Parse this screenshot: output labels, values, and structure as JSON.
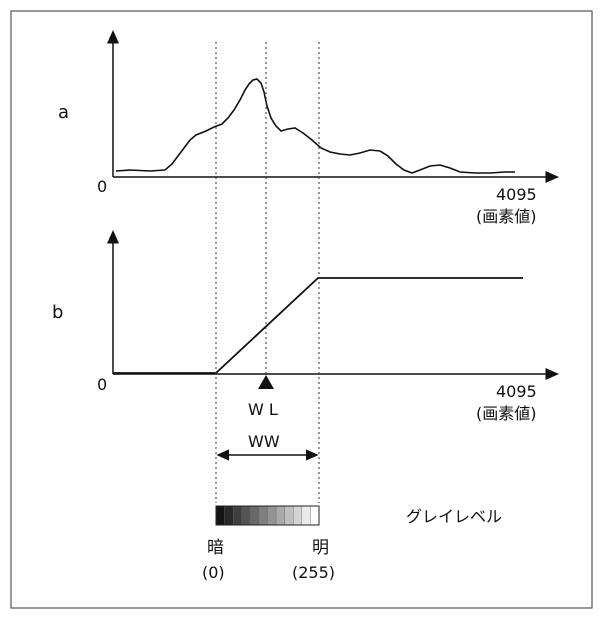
{
  "panel_a": {
    "label": "a",
    "origin_label": "0",
    "max_label": "4095",
    "axis_caption": "(画素値)"
  },
  "panel_b": {
    "label": "b",
    "origin_label": "0",
    "max_label": "4095",
    "axis_caption": "(画素値)"
  },
  "window_level_label": "W L",
  "window_width_label": "WW",
  "gray_level_label": "グレイレベル",
  "dark_label": "暗",
  "dark_value": "(0)",
  "bright_label": "明",
  "bright_value": "(255)",
  "gray_steps": 12
}
